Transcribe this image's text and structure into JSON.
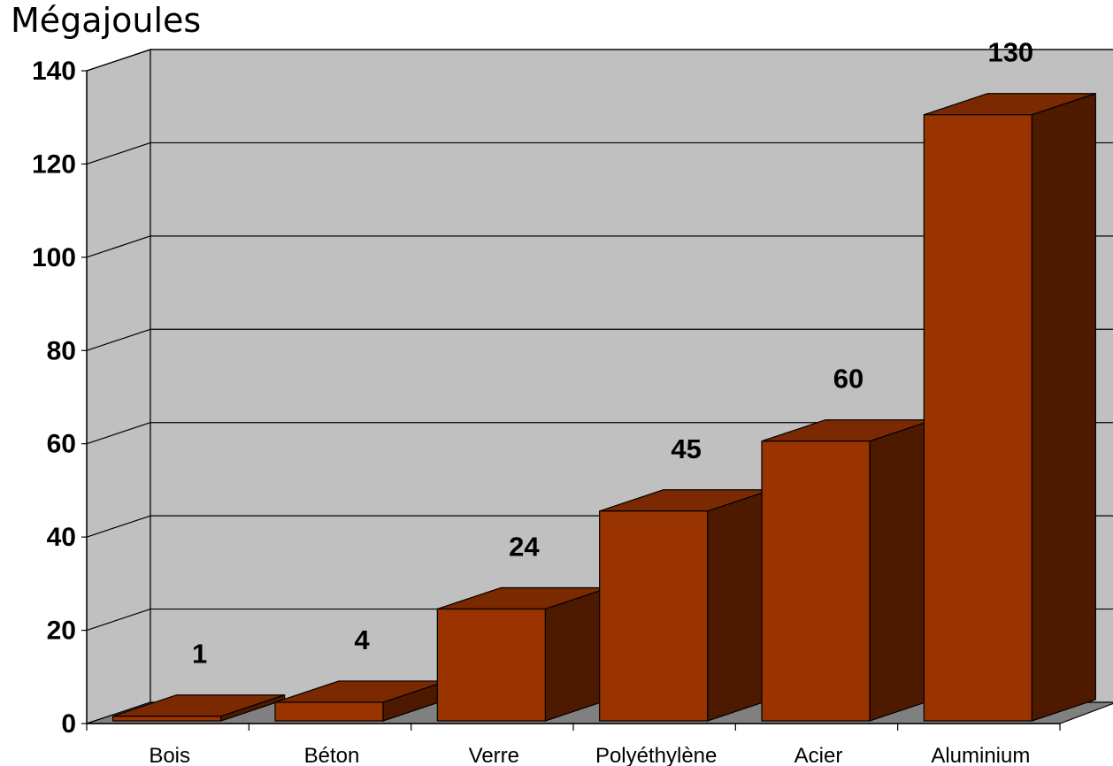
{
  "chart_data": {
    "type": "bar",
    "title": "",
    "ylabel": "Mégajoules",
    "xlabel": "",
    "categories": [
      "Bois",
      "Béton",
      "Verre",
      "Polyéthylène",
      "Acier",
      "Aluminium"
    ],
    "values": [
      1,
      4,
      24,
      45,
      60,
      130
    ],
    "data_labels": [
      "1",
      "4",
      "24",
      "45",
      "60",
      "130"
    ],
    "ylim": [
      0,
      140
    ],
    "yticks": [
      0,
      20,
      40,
      60,
      80,
      100,
      120,
      140
    ],
    "grid": true,
    "three_d": true,
    "legend": "none",
    "colors": {
      "bar_front": "#993300",
      "bar_top": "#7a2900",
      "bar_side": "#4d1a00",
      "back_wall": "#c0c0c0",
      "side_wall": "#c0c0c0",
      "floor": "#808080"
    }
  }
}
